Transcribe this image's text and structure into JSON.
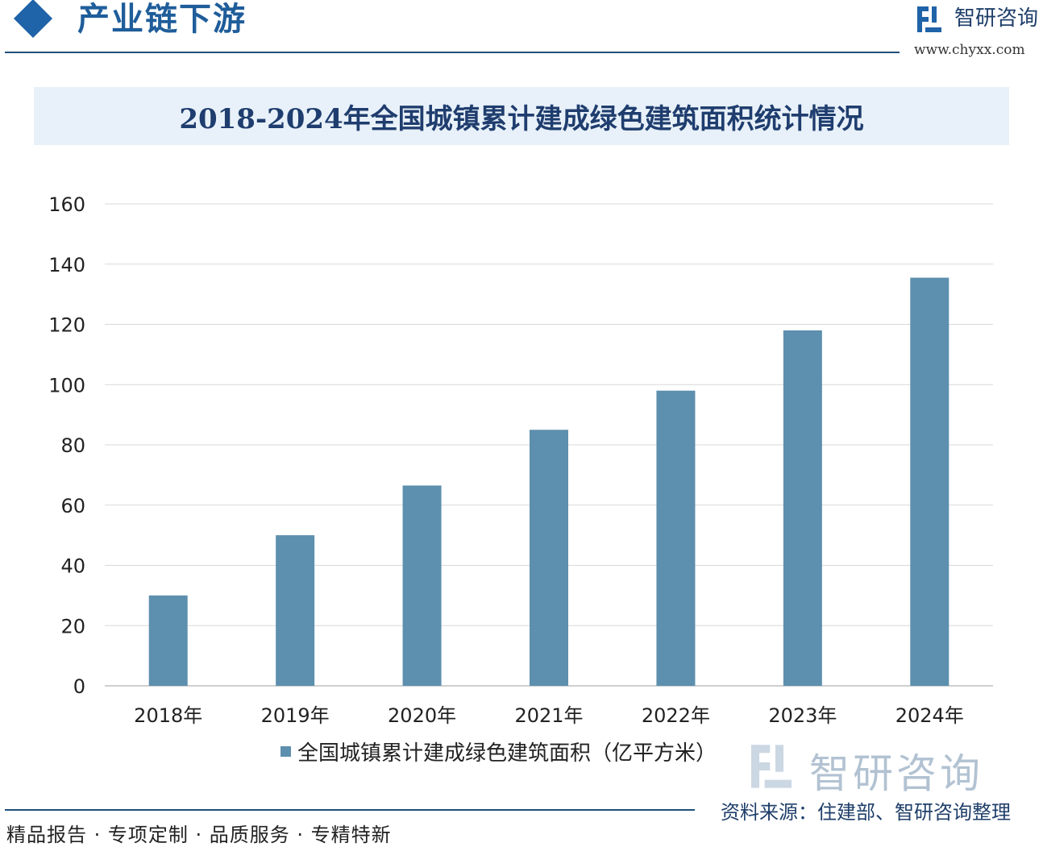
{
  "header": {
    "section_title": "产业链下游",
    "brand_name": "智研咨询",
    "brand_url": "www.chyxx.com"
  },
  "chart_data": {
    "type": "bar",
    "title": "2018-2024年全国城镇累计建成绿色建筑面积统计情况",
    "categories": [
      "2018年",
      "2019年",
      "2020年",
      "2021年",
      "2022年",
      "2023年",
      "2024年"
    ],
    "series": [
      {
        "name": "全国城镇累计建成绿色建筑面积（亿平方米）",
        "values": [
          30,
          50,
          66.5,
          85,
          98,
          118,
          135.5
        ],
        "color": "#5d8fae"
      }
    ],
    "yticks": [
      "0",
      "20",
      "40",
      "60",
      "80",
      "100",
      "120",
      "140",
      "160"
    ],
    "ylim": [
      0,
      160
    ],
    "grid": true,
    "legend_position": "bottom"
  },
  "footer": {
    "slogan": "精品报告 · 专项定制 · 品质服务 · 专精特新",
    "source": "资料来源：住建部、智研咨询整理",
    "watermark_name": "智研咨询"
  },
  "colors": {
    "accent": "#1f63a8",
    "bar": "#5d8fae",
    "title_band": "#e8f1f9"
  }
}
